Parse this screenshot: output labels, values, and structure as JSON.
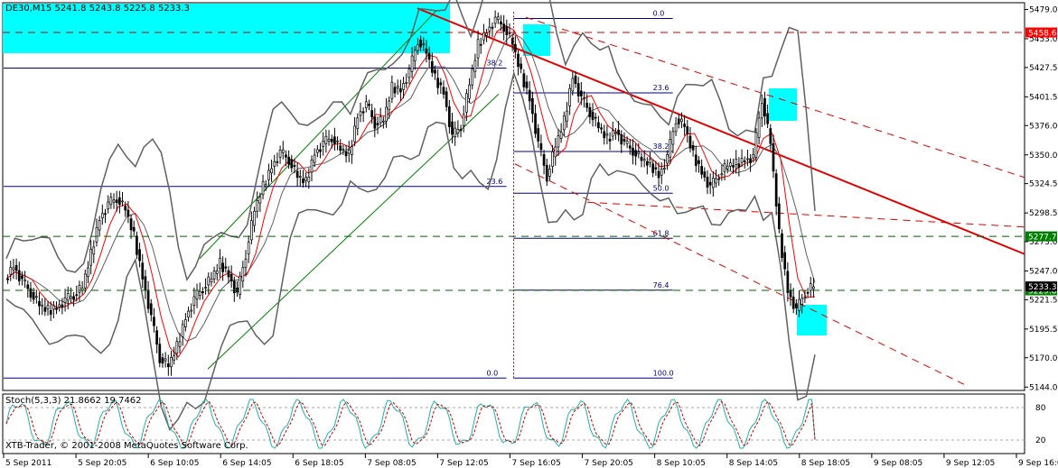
{
  "header": {
    "symbol_line": "DE30,M15  5241.8 5243.8 5225.8 5233.3",
    "indicator_line": "Stoch(5,3,3) 21.8662 19.7462",
    "copyright": "XTB-Trader, © 2001-2008 MetaQuotes Software Corp."
  },
  "colors": {
    "background": "#ffffff",
    "candles": "#000000",
    "bollinger": "#606060",
    "ma_red": "#ff0000",
    "trend_red": "#e00000",
    "channel_green": "#008000",
    "fib_blue": "#000080",
    "highlight_cyan": "#00ffff",
    "stoch_main": "#20b2aa",
    "stoch_signal": "#cc0000"
  },
  "chart_data": {
    "type": "candlestick",
    "symbol": "DE30",
    "timeframe": "M15",
    "ohlc_last": {
      "open": 5241.8,
      "high": 5243.8,
      "low": 5225.8,
      "close": 5233.3
    },
    "price_axis_ticks": [
      "5479.0",
      "5453.0",
      "5427.5",
      "5401.5",
      "5376.0",
      "5350.0",
      "5324.5",
      "5298.5",
      "5273.0",
      "5247.0",
      "5221.5",
      "5195.5",
      "5170.0",
      "5144.0"
    ],
    "ylim": [
      5141,
      5485
    ],
    "time_axis_ticks": [
      "5 Sep 2011",
      "5 Sep 20:05",
      "6 Sep 10:05",
      "6 Sep 14:05",
      "6 Sep 18:05",
      "7 Sep 08:05",
      "7 Sep 12:05",
      "7 Sep 16:05",
      "7 Sep 20:05",
      "8 Sep 10:05",
      "8 Sep 14:05",
      "8 Sep 18:05",
      "9 Sep 08:05",
      "9 Sep 12:05",
      "9 Sep 16:05"
    ],
    "price_labels": [
      {
        "value": 5458.6,
        "text": "5458.6",
        "color": "#ff0000"
      },
      {
        "value": 5277.7,
        "text": "5277.7",
        "color": "#008000"
      },
      {
        "value": 5229.8,
        "text": "5229.8",
        "color": "#008000"
      },
      {
        "value": 5233.3,
        "text": "5233.3",
        "color": "#000000"
      }
    ],
    "horizontal_lines": [
      {
        "value": 5458.6,
        "color": "#cc0000",
        "style": "dashed"
      },
      {
        "value": 5277.7,
        "color": "#006400",
        "style": "dashed"
      },
      {
        "value": 5229.8,
        "color": "#006400",
        "style": "dashed"
      }
    ],
    "fib_retracement_1": {
      "levels": [
        "0.0",
        "23.6",
        "38.2"
      ],
      "level_prices": [
        5152,
        5322,
        5427
      ],
      "x_range": [
        "5 Sep 2011",
        "7 Sep 16:05"
      ]
    },
    "fib_retracement_2": {
      "levels": [
        "0.0",
        "23.6",
        "38.2",
        "50.0",
        "61.8",
        "76.4",
        "100.0"
      ],
      "level_prices": [
        5471,
        5405,
        5353,
        5316,
        5276,
        5230,
        5152
      ],
      "x_range": [
        "7 Sep 16:05",
        "8 Sep 10:05"
      ]
    },
    "stoch_axis_ticks": [
      "80",
      "20"
    ],
    "stoch_ylim": [
      0,
      100
    ],
    "stochastic": {
      "k": 21.8662,
      "d": 19.7462,
      "params": "5,3,3"
    },
    "price_path": [
      5240,
      5252,
      5238,
      5228,
      5216,
      5212,
      5215,
      5221,
      5226,
      5232,
      5262,
      5294,
      5306,
      5312,
      5301,
      5278,
      5242,
      5206,
      5170,
      5162,
      5180,
      5206,
      5222,
      5232,
      5240,
      5254,
      5244,
      5226,
      5262,
      5300,
      5322,
      5340,
      5352,
      5346,
      5330,
      5326,
      5352,
      5360,
      5366,
      5354,
      5350,
      5385,
      5395,
      5378,
      5380,
      5410,
      5408,
      5424,
      5452,
      5440,
      5418,
      5406,
      5366,
      5376,
      5412,
      5448,
      5460,
      5470,
      5464,
      5448,
      5422,
      5400,
      5360,
      5331,
      5357,
      5380,
      5420,
      5400,
      5388,
      5374,
      5364,
      5372,
      5360,
      5354,
      5345,
      5342,
      5332,
      5348,
      5382,
      5375,
      5350,
      5335,
      5321,
      5333,
      5340,
      5342,
      5346,
      5348,
      5400,
      5360,
      5280,
      5230,
      5212,
      5228,
      5233
    ]
  }
}
